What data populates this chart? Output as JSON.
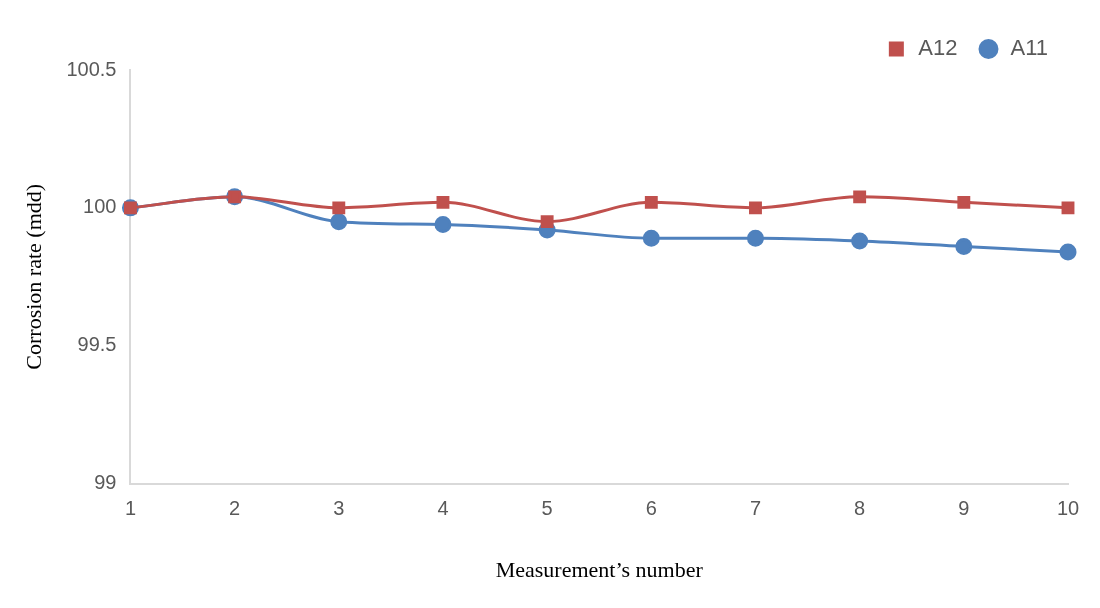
{
  "chart_data": {
    "type": "line",
    "xlabel": "Measurement’s number",
    "ylabel": "Corrosion rate (mdd)",
    "categories": [
      "1",
      "2",
      "3",
      "4",
      "5",
      "6",
      "7",
      "8",
      "9",
      "10"
    ],
    "series": [
      {
        "name": "A11",
        "color": "#4f81bd",
        "marker": "circle",
        "values": [
          100.0,
          100.04,
          99.95,
          99.94,
          99.92,
          99.89,
          99.89,
          99.88,
          99.86,
          99.84
        ]
      },
      {
        "name": "A12",
        "color": "#c0504d",
        "marker": "square",
        "values": [
          100.0,
          100.04,
          100.0,
          100.02,
          99.95,
          100.02,
          100.0,
          100.04,
          100.02,
          100.0
        ]
      }
    ],
    "ylim": [
      99,
      100.5
    ],
    "yticks": [
      99,
      99.5,
      100,
      100.5
    ],
    "grid": false,
    "legend": "top right",
    "line_style": "solid"
  }
}
